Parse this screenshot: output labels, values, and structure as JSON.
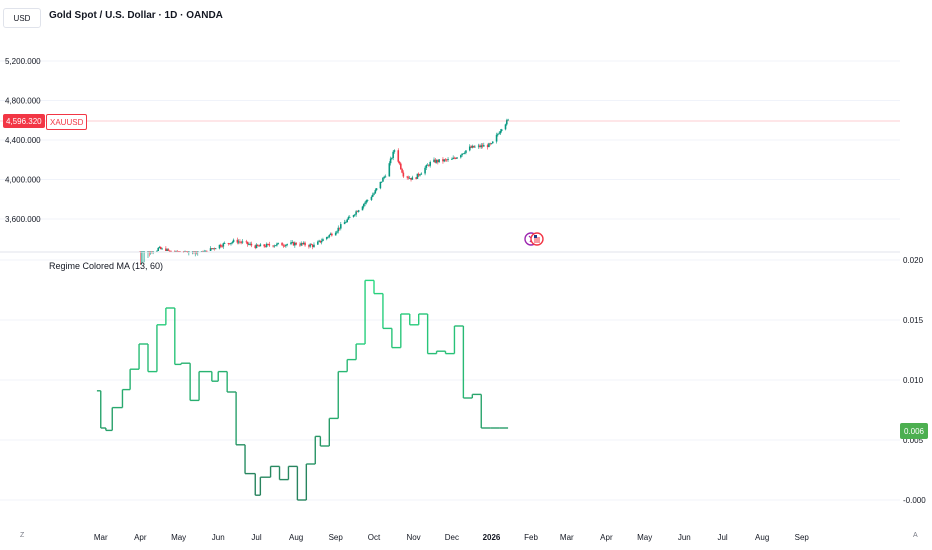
{
  "header": {
    "currency_label": "USD",
    "symbol_title": "Gold Spot / U.S. Dollar · 1D · OANDA"
  },
  "price_pane": {
    "y_ticks": [
      "5,200.000",
      "4,800.000",
      "4,400.000",
      "4,000.000",
      "3,600.000"
    ],
    "last_price_tag": "4,596.320",
    "last_price_symbol": "XAUUSD",
    "up_color": "#089981",
    "down_color": "#f23645"
  },
  "indicator_pane": {
    "title": "Regime Colored MA (13, 60)",
    "y_ticks": [
      "0.020",
      "0.015",
      "0.010",
      "0.005",
      "-0.000"
    ],
    "last_value_tag": "0.006"
  },
  "time_axis": {
    "labels": [
      "Mar",
      "Apr",
      "May",
      "Jun",
      "Jul",
      "Aug",
      "Sep",
      "Oct",
      "Nov",
      "Dec",
      "2026",
      "Feb",
      "Mar",
      "Apr",
      "May",
      "Jun",
      "Jul",
      "Aug",
      "Sep"
    ],
    "left_glyph": "Z",
    "right_glyph": "A"
  },
  "chart_data": [
    {
      "type": "candlestick",
      "title": "Gold Spot / U.S. Dollar · 1D · OANDA",
      "ylim": [
        3250,
        5400
      ],
      "x_dates": [
        "2025-04-01",
        "2025-04-15",
        "2025-05-01",
        "2025-05-15",
        "2025-06-01",
        "2025-06-15",
        "2025-07-01",
        "2025-07-15",
        "2025-08-01",
        "2025-08-15",
        "2025-09-01",
        "2025-09-15",
        "2025-10-01",
        "2025-10-10",
        "2025-10-17",
        "2025-10-24",
        "2025-11-01",
        "2025-11-15",
        "2025-12-01",
        "2025-12-15",
        "2026-01-01",
        "2026-01-10",
        "2026-01-14"
      ],
      "close": [
        3120,
        3300,
        3250,
        3220,
        3330,
        3380,
        3320,
        3340,
        3350,
        3330,
        3480,
        3650,
        3860,
        4050,
        4300,
        4050,
        4000,
        4180,
        4200,
        4320,
        4350,
        4550,
        4596.32
      ],
      "last": 4596.32
    },
    {
      "type": "line",
      "title": "Regime Colored MA (13, 60)",
      "ylim": [
        -0.001,
        0.021
      ],
      "x_dates": [
        "2025-02-26",
        "2025-03-01",
        "2025-03-05",
        "2025-03-10",
        "2025-03-18",
        "2025-03-24",
        "2025-03-31",
        "2025-04-07",
        "2025-04-14",
        "2025-04-21",
        "2025-04-28",
        "2025-05-03",
        "2025-05-10",
        "2025-05-17",
        "2025-05-27",
        "2025-06-01",
        "2025-06-08",
        "2025-06-15",
        "2025-06-22",
        "2025-06-30",
        "2025-07-04",
        "2025-07-12",
        "2025-07-19",
        "2025-07-26",
        "2025-08-02",
        "2025-08-09",
        "2025-08-16",
        "2025-08-20",
        "2025-08-27",
        "2025-09-03",
        "2025-09-10",
        "2025-09-17",
        "2025-09-24",
        "2025-10-01",
        "2025-10-08",
        "2025-10-15",
        "2025-10-22",
        "2025-10-29",
        "2025-11-05",
        "2025-11-12",
        "2025-11-19",
        "2025-11-26",
        "2025-12-03",
        "2025-12-10",
        "2025-12-17",
        "2025-12-24",
        "2025-12-31",
        "2026-01-07",
        "2026-01-14"
      ],
      "values": [
        0.0091,
        0.006,
        0.0058,
        0.0077,
        0.0092,
        0.0109,
        0.013,
        0.0107,
        0.0146,
        0.016,
        0.0113,
        0.0114,
        0.0083,
        0.0107,
        0.0099,
        0.0107,
        0.009,
        0.0046,
        0.0022,
        0.0004,
        0.0019,
        0.0028,
        0.0017,
        0.0028,
        0.0,
        0.003,
        0.0053,
        0.0045,
        0.0068,
        0.0107,
        0.0117,
        0.013,
        0.0183,
        0.0172,
        0.0143,
        0.0127,
        0.0155,
        0.0146,
        0.0155,
        0.0122,
        0.0124,
        0.0122,
        0.0145,
        0.0085,
        0.0088,
        0.006,
        0.006,
        0.006,
        0.006
      ],
      "last": 0.006
    }
  ]
}
